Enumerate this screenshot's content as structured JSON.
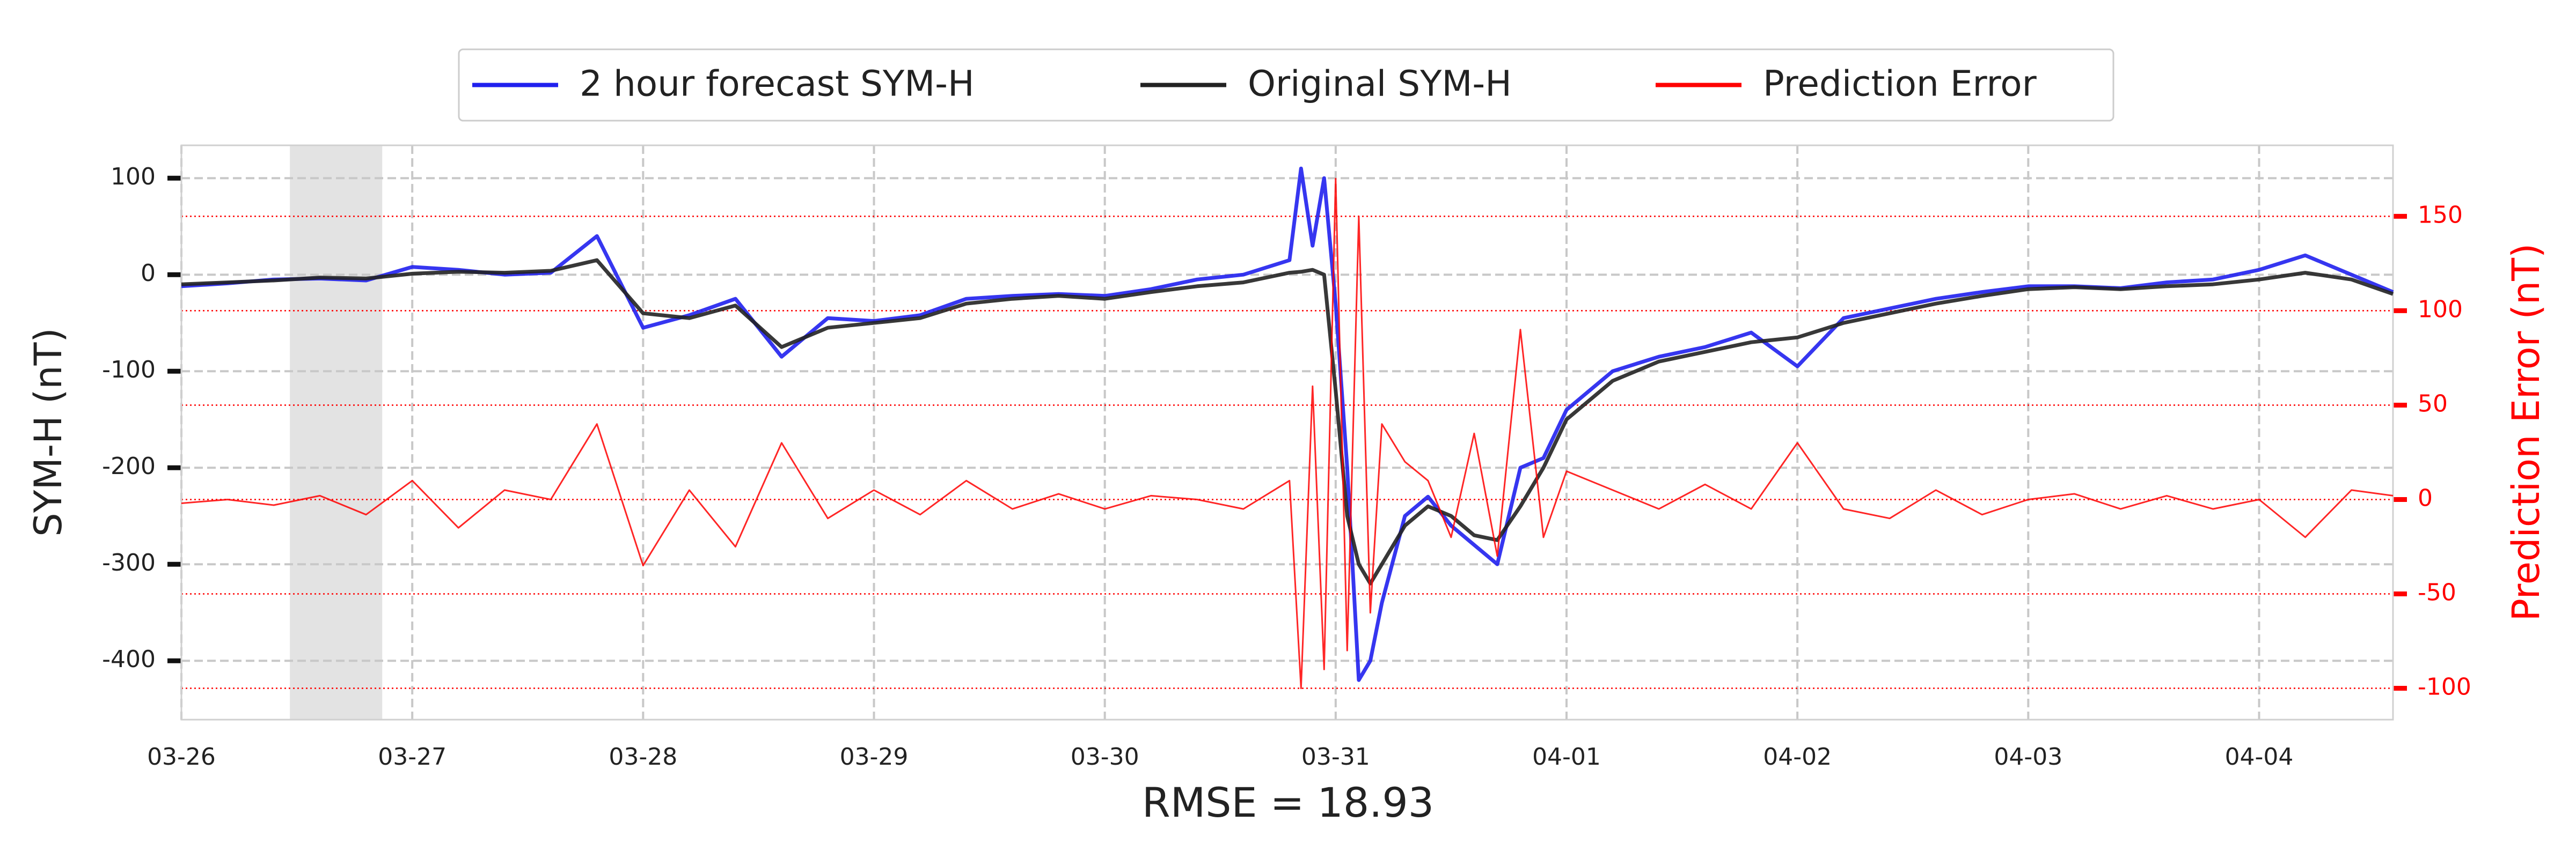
{
  "chart_data": {
    "type": "line",
    "xlabel": "RMSE = 18.93",
    "ylabel": "SYM-H (nT)",
    "y2label": "Prediction Error (nT)",
    "x": [
      0,
      0.2,
      0.4,
      0.6,
      0.8,
      1.0,
      1.2,
      1.4,
      1.6,
      1.8,
      2.0,
      2.2,
      2.4,
      2.6,
      2.8,
      3.0,
      3.2,
      3.4,
      3.6,
      3.8,
      4.0,
      4.2,
      4.4,
      4.6,
      4.8,
      4.85,
      4.9,
      4.95,
      5.0,
      5.05,
      5.1,
      5.15,
      5.2,
      5.3,
      5.4,
      5.5,
      5.6,
      5.7,
      5.8,
      5.9,
      6.0,
      6.2,
      6.4,
      6.6,
      6.8,
      7.0,
      7.2,
      7.4,
      7.6,
      7.8,
      8.0,
      8.2,
      8.4,
      8.6,
      8.8,
      9.0,
      9.2,
      9.4,
      9.58
    ],
    "series": [
      {
        "name": "2 hour forecast SYM-H",
        "color": "#2020ee",
        "values": [
          -12,
          -9,
          -5,
          -4,
          -6,
          8,
          5,
          0,
          2,
          40,
          -55,
          -42,
          -25,
          -85,
          -45,
          -48,
          -42,
          -25,
          -22,
          -20,
          -22,
          -15,
          -5,
          0,
          15,
          110,
          30,
          100,
          -30,
          -200,
          -420,
          -400,
          -340,
          -250,
          -230,
          -260,
          -280,
          -300,
          -200,
          -190,
          -140,
          -100,
          -85,
          -75,
          -60,
          -95,
          -45,
          -35,
          -25,
          -18,
          -12,
          -12,
          -14,
          -8,
          -5,
          5,
          20,
          0,
          -18
        ]
      },
      {
        "name": "Original SYM-H",
        "color": "#222222",
        "values": [
          -10,
          -8,
          -6,
          -3,
          -4,
          1,
          3,
          2,
          4,
          15,
          -40,
          -45,
          -32,
          -75,
          -55,
          -50,
          -45,
          -30,
          -25,
          -22,
          -25,
          -18,
          -12,
          -8,
          2,
          3,
          5,
          0,
          -120,
          -250,
          -300,
          -320,
          -300,
          -260,
          -240,
          -250,
          -270,
          -275,
          -240,
          -200,
          -150,
          -110,
          -90,
          -80,
          -70,
          -65,
          -50,
          -40,
          -30,
          -22,
          -15,
          -13,
          -15,
          -12,
          -10,
          -5,
          2,
          -5,
          -20
        ]
      },
      {
        "name": "Prediction Error",
        "color": "#ff0000",
        "axis": "y2",
        "values": [
          -2,
          0,
          -3,
          2,
          -8,
          10,
          -15,
          5,
          0,
          40,
          -35,
          5,
          -25,
          30,
          -10,
          5,
          -8,
          10,
          -5,
          3,
          -5,
          2,
          0,
          -5,
          10,
          -100,
          60,
          -90,
          170,
          -80,
          150,
          -60,
          40,
          20,
          10,
          -20,
          35,
          -30,
          90,
          -20,
          15,
          5,
          -5,
          8,
          -5,
          30,
          -5,
          -10,
          5,
          -8,
          0,
          3,
          -5,
          2,
          -5,
          0,
          -20,
          5,
          2
        ]
      }
    ],
    "xlim": [
      0,
      9.58
    ],
    "xticks": [
      {
        "value": 0,
        "label": "03-26"
      },
      {
        "value": 1,
        "label": "03-27"
      },
      {
        "value": 2,
        "label": "03-28"
      },
      {
        "value": 3,
        "label": "03-29"
      },
      {
        "value": 4,
        "label": "03-30"
      },
      {
        "value": 5,
        "label": "03-31"
      },
      {
        "value": 6,
        "label": "04-01"
      },
      {
        "value": 7,
        "label": "04-02"
      },
      {
        "value": 8,
        "label": "04-03"
      },
      {
        "value": 9,
        "label": "04-04"
      }
    ],
    "ylim": [
      -461,
      134
    ],
    "yticks": [
      -400,
      -300,
      -200,
      -100,
      0,
      100
    ],
    "y2lim": [
      -116.6,
      187.6
    ],
    "y2ticks": [
      -100,
      -50,
      0,
      50,
      100,
      150
    ],
    "shaded_span": [
      0.47,
      0.87
    ],
    "grid": true,
    "y2grid": true,
    "legend": "upper center"
  }
}
